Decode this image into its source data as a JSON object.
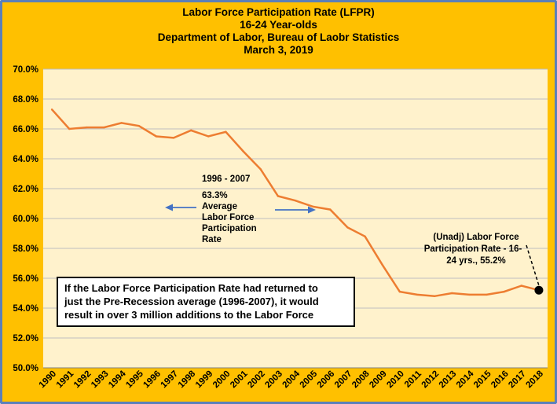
{
  "chart_data": {
    "type": "line",
    "title_lines": [
      "Labor Force Participation Rate (LFPR)",
      "16-24 Year-olds",
      "Department of Labor, Bureau of Laobr Statistics",
      "March 3, 2019"
    ],
    "x": [
      "1990",
      "1991",
      "1992",
      "1993",
      "1994",
      "1995",
      "1996",
      "1997",
      "1998",
      "1999",
      "2000",
      "2001",
      "2002",
      "2003",
      "2004",
      "2005",
      "2006",
      "2007",
      "2008",
      "2009",
      "2010",
      "2011",
      "2012",
      "2013",
      "2014",
      "2015",
      "2016",
      "2017",
      "2018"
    ],
    "series": [
      {
        "values": [
          67.3,
          66.0,
          66.1,
          66.1,
          66.4,
          66.2,
          65.5,
          65.4,
          65.9,
          65.5,
          65.8,
          64.5,
          63.3,
          61.5,
          61.2,
          60.8,
          60.6,
          59.4,
          58.8,
          56.9,
          55.1,
          54.9,
          54.8,
          55.0,
          54.9,
          54.9,
          55.1,
          55.5,
          55.2
        ]
      }
    ],
    "ylim": [
      50.0,
      70.0
    ],
    "yticks": [
      "50.0%",
      "52.0%",
      "54.0%",
      "56.0%",
      "58.0%",
      "60.0%",
      "62.0%",
      "64.0%",
      "66.0%",
      "68.0%",
      "70.0%"
    ],
    "grid": "horizontal",
    "line_color": "#ed7d31",
    "plot_bg": "#fff2cc",
    "annotations": {
      "period": "1996 - 2007",
      "average_lines": [
        "63.3%",
        "Average",
        "Labor Force",
        "Participation",
        "Rate"
      ],
      "endpoint_lines": [
        "(Unadj) Labor Force",
        "Participation Rate - 16-",
        "24 yrs.,  55.2%"
      ],
      "callout_lines": [
        "If the Labor Force Participation Rate had returned to",
        "just the Pre-Recession average (1996-2007), it would",
        "result in over 3 million additions to the Labor Force"
      ]
    }
  }
}
